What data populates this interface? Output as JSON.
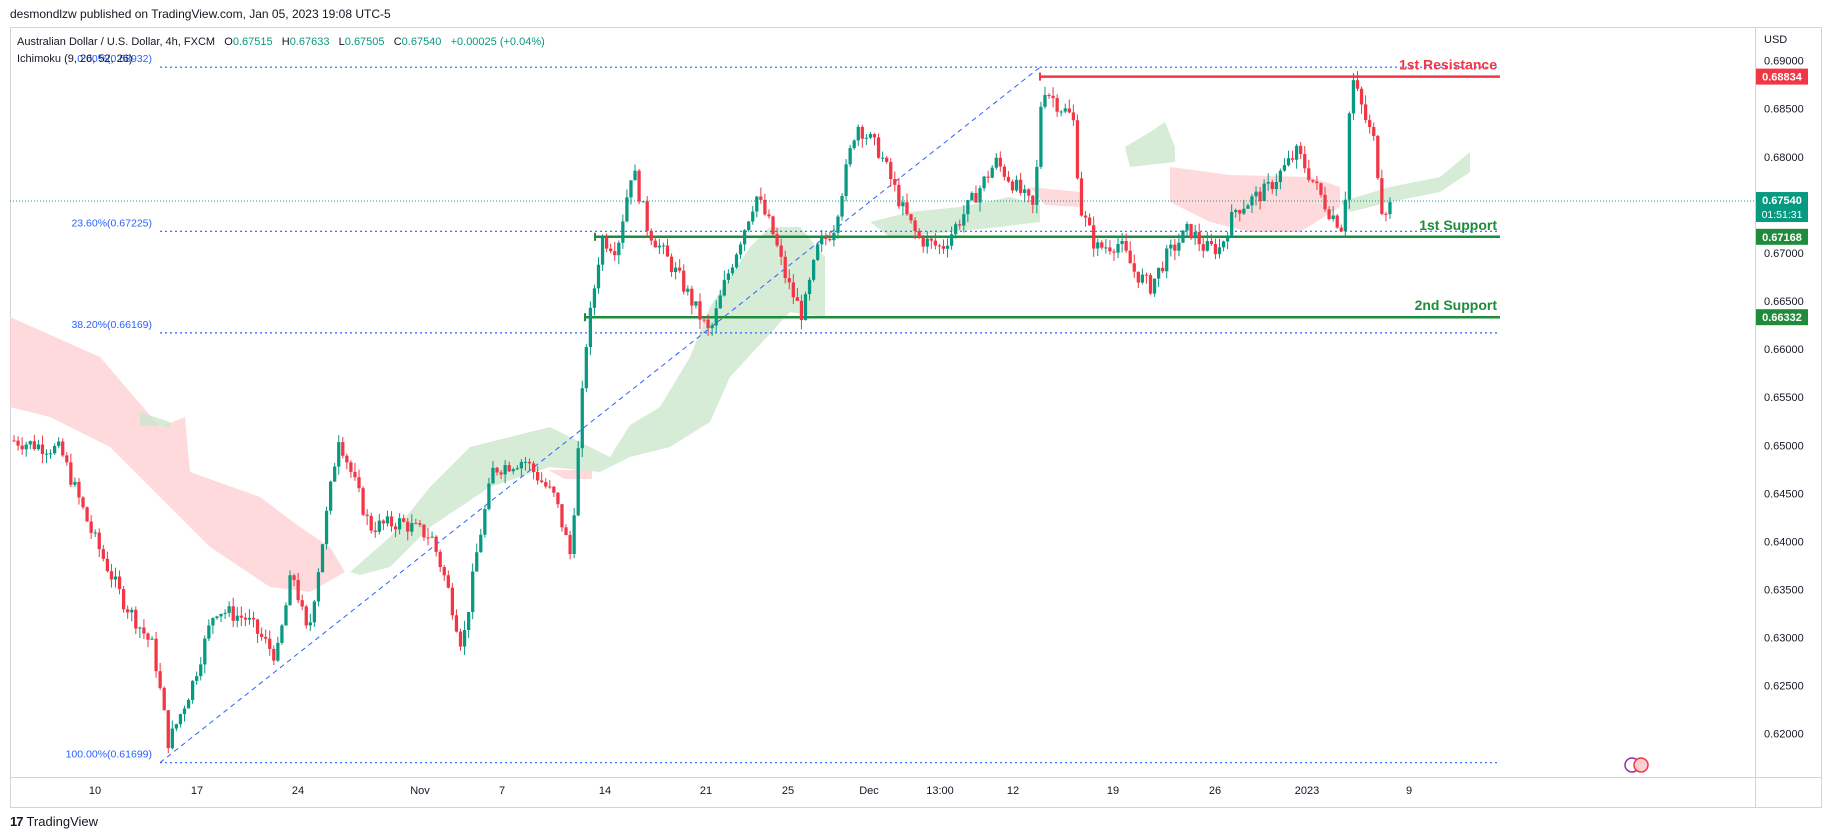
{
  "header": {
    "credit": "desmondlzw published on TradingView.com, Jan 05, 2023 19:08 UTC-5"
  },
  "legend": {
    "symbol": "Australian Dollar / U.S. Dollar, 4h, FXCM",
    "o_label": "O",
    "o": "0.67515",
    "h_label": "H",
    "h": "0.67633",
    "l_label": "L",
    "l": "0.67505",
    "c_label": "C",
    "c": "0.67540",
    "change": "+0.00025 (+0.04%)",
    "indicator": "Ichimoku (9, 26, 52, 26)"
  },
  "axis": {
    "currency": "USD"
  },
  "footer": {
    "brand": "TradingView"
  },
  "colors": {
    "up": "#089981",
    "down": "#f23645",
    "resistance": "#f23645",
    "support": "#1e8c3a",
    "fib": "#2962ff",
    "cloud_bull": "#c8e6c9",
    "cloud_bear": "#ffcdd2"
  },
  "chart_data": {
    "type": "candlestick",
    "ylim": [
      0.6155,
      0.6935
    ],
    "yticks": [
      "0.69000",
      "0.68500",
      "0.68000",
      "0.67500",
      "0.67000",
      "0.66500",
      "0.66000",
      "0.65500",
      "0.65000",
      "0.64500",
      "0.64000",
      "0.63500",
      "0.63000",
      "0.62500",
      "0.62000"
    ],
    "xticks": [
      "10",
      "17",
      "24",
      "Nov",
      "7",
      "14",
      "21",
      "25",
      "Dec",
      "13:00",
      "12",
      "19",
      "26",
      "2023",
      "9"
    ],
    "fib_levels": [
      {
        "label": "0.00%(0.68932)",
        "value": 0.68932
      },
      {
        "label": "23.60%(0.67225)",
        "value": 0.67225
      },
      {
        "label": "38.20%(0.66169)",
        "value": 0.66169
      },
      {
        "label": "100.00%(0.61699)",
        "value": 0.61699
      }
    ],
    "levels": [
      {
        "name": "1st Resistance",
        "value": 0.68834,
        "value_label": "0.68834",
        "kind": "resistance"
      },
      {
        "name": "1st Support",
        "value": 0.67168,
        "value_label": "0.67168",
        "kind": "support"
      },
      {
        "name": "2nd Support",
        "value": 0.66332,
        "value_label": "0.66332",
        "kind": "support"
      }
    ],
    "last_price": {
      "value": 0.6754,
      "label": "0.67540",
      "countdown": "01:51:31"
    },
    "close_path": [
      [
        0.0,
        0.6505
      ],
      [
        0.03,
        0.6495
      ],
      [
        0.05,
        0.641
      ],
      [
        0.07,
        0.634
      ],
      [
        0.09,
        0.629
      ],
      [
        0.1,
        0.619
      ],
      [
        0.115,
        0.625
      ],
      [
        0.13,
        0.633
      ],
      [
        0.15,
        0.632
      ],
      [
        0.17,
        0.628
      ],
      [
        0.18,
        0.637
      ],
      [
        0.19,
        0.63
      ],
      [
        0.21,
        0.651
      ],
      [
        0.23,
        0.6415
      ],
      [
        0.25,
        0.642
      ],
      [
        0.27,
        0.6405
      ],
      [
        0.28,
        0.6355
      ],
      [
        0.29,
        0.629
      ],
      [
        0.3,
        0.6395
      ],
      [
        0.31,
        0.6475
      ],
      [
        0.33,
        0.6485
      ],
      [
        0.35,
        0.6445
      ],
      [
        0.36,
        0.6385
      ],
      [
        0.37,
        0.6605
      ],
      [
        0.38,
        0.6715
      ],
      [
        0.39,
        0.6705
      ],
      [
        0.4,
        0.679
      ],
      [
        0.41,
        0.6725
      ],
      [
        0.42,
        0.67
      ],
      [
        0.43,
        0.6675
      ],
      [
        0.45,
        0.6615
      ],
      [
        0.46,
        0.667
      ],
      [
        0.47,
        0.6715
      ],
      [
        0.48,
        0.676
      ],
      [
        0.49,
        0.6725
      ],
      [
        0.5,
        0.667
      ],
      [
        0.51,
        0.6635
      ],
      [
        0.52,
        0.6705
      ],
      [
        0.53,
        0.6725
      ],
      [
        0.545,
        0.6835
      ],
      [
        0.56,
        0.6805
      ],
      [
        0.575,
        0.6745
      ],
      [
        0.585,
        0.6715
      ],
      [
        0.6,
        0.6705
      ],
      [
        0.62,
        0.6755
      ],
      [
        0.635,
        0.6795
      ],
      [
        0.65,
        0.6765
      ],
      [
        0.66,
        0.6745
      ],
      [
        0.665,
        0.6875
      ],
      [
        0.675,
        0.6855
      ],
      [
        0.685,
        0.684
      ],
      [
        0.69,
        0.6745
      ],
      [
        0.7,
        0.6705
      ],
      [
        0.715,
        0.671
      ],
      [
        0.725,
        0.668
      ],
      [
        0.735,
        0.6665
      ],
      [
        0.745,
        0.6695
      ],
      [
        0.76,
        0.6725
      ],
      [
        0.77,
        0.6705
      ],
      [
        0.78,
        0.6705
      ],
      [
        0.79,
        0.6745
      ],
      [
        0.81,
        0.6765
      ],
      [
        0.83,
        0.6805
      ],
      [
        0.84,
        0.6775
      ],
      [
        0.85,
        0.6745
      ],
      [
        0.86,
        0.6725
      ],
      [
        0.865,
        0.6885
      ],
      [
        0.875,
        0.6835
      ],
      [
        0.88,
        0.6815
      ],
      [
        0.885,
        0.6745
      ],
      [
        0.89,
        0.675
      ]
    ]
  }
}
